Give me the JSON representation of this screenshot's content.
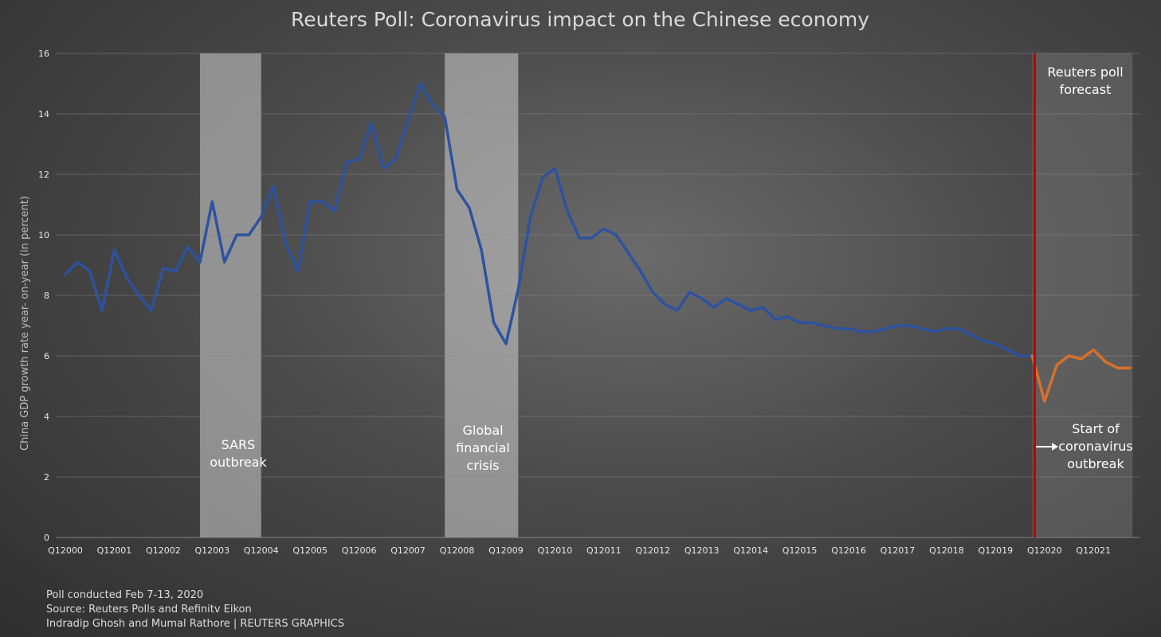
{
  "footer": {
    "line1": "Poll conducted Feb 7-13, 2020",
    "line2": "Source: Reuters Polls and Refinitv Eikon",
    "line3": "Indradip Ghosh and Mumal Rathore | REUTERS GRAPHICS"
  },
  "chart_data": {
    "type": "line",
    "title": "Reuters Poll: Coronavirus impact on the Chinese economy",
    "ylabel": "China GDP growth rate year- on-year (in percent)",
    "xlabel": "",
    "ylim": [
      0,
      16
    ],
    "yticks": [
      0,
      2,
      4,
      6,
      8,
      10,
      12,
      14,
      16
    ],
    "grid": "horizontal",
    "x_tick_labels": [
      "Q12000",
      "Q12001",
      "Q12002",
      "Q12003",
      "Q12004",
      "Q12005",
      "Q12006",
      "Q12007",
      "Q12008",
      "Q12009",
      "Q12010",
      "Q12011",
      "Q12012",
      "Q12013",
      "Q12014",
      "Q12015",
      "Q12016",
      "Q12017",
      "Q12018",
      "Q12019",
      "Q12020",
      "Q12021"
    ],
    "x_start": "Q1 2000",
    "x_end": "Q4 2021",
    "x_count": 88,
    "series": [
      {
        "color": "#2d52a0",
        "x_start_index": 0,
        "values": [
          8.7,
          9.1,
          8.8,
          7.5,
          9.5,
          8.6,
          8.0,
          7.5,
          8.9,
          8.8,
          9.6,
          9.1,
          11.1,
          9.1,
          10.0,
          10.0,
          10.6,
          11.6,
          9.7,
          8.8,
          11.1,
          11.1,
          10.8,
          12.4,
          12.5,
          13.7,
          12.2,
          12.5,
          13.8,
          15.0,
          14.3,
          13.9,
          11.5,
          10.9,
          9.5,
          7.1,
          6.4,
          8.2,
          10.6,
          11.9,
          12.2,
          10.8,
          9.9,
          9.9,
          10.2,
          10.0,
          9.4,
          8.8,
          8.1,
          7.7,
          7.5,
          8.1,
          7.9,
          7.6,
          7.9,
          7.7,
          7.5,
          7.6,
          7.2,
          7.3,
          7.1,
          7.1,
          7.0,
          6.9,
          6.9,
          6.8,
          6.8,
          6.9,
          7.0,
          7.0,
          6.9,
          6.8,
          6.9,
          6.9,
          6.7,
          6.5,
          6.4,
          6.2,
          6.0,
          6.0
        ]
      },
      {
        "color": "#d8702c",
        "x_start_index": 79,
        "values": [
          6.0,
          4.5,
          5.7,
          6.0,
          5.9,
          6.2,
          5.8,
          5.6,
          5.6
        ]
      }
    ],
    "shaded_periods": [
      {
        "label_lines": [
          "SARS",
          "outbreak"
        ],
        "from": "Q4 2002",
        "to": "Q1 2004"
      },
      {
        "label_lines": [
          "Global",
          "financial",
          "crisis"
        ],
        "from": "Q4 2007",
        "to": "Q2 2009"
      },
      {
        "label_lines": [
          "Reuters poll",
          "forecast"
        ],
        "from": "Q4 2019",
        "to": "Q4 2021"
      }
    ],
    "marker_line": {
      "at": "Q4 2019",
      "color": "#c00000"
    },
    "annotation": {
      "lines": [
        "Start of",
        "coronavirus",
        "outbreak"
      ],
      "arrow": true
    }
  }
}
